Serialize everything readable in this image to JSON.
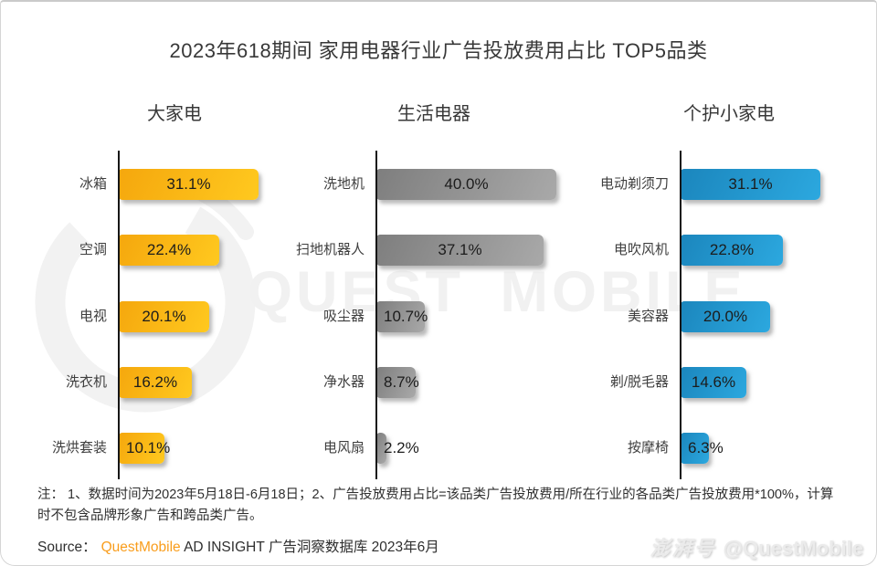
{
  "card": {
    "title": "2023年618期间 家用电器行业广告投放费用占比 TOP5品类",
    "note": "注： 1、数据时间为2023年5月18日-6月18日；2、广告投放费用占比=该品类广告投放费用/所在行业的各品类广告投放费用*100%，计算时不包含品牌形象广告和跨品类广告。",
    "source_prefix": "Source：",
    "source_brand": "QuestMobile",
    "source_rest": " AD INSIGHT 广告洞察数据库 2023年6月",
    "watermark_text": "QUEST MOBILE",
    "watermark_badge_cn": "澎湃号",
    "watermark_badge_handle": "@QuestMobile"
  },
  "colors": {
    "axis": "#161616",
    "title_text": "#383838",
    "value_text": "#1c1c1c",
    "brand_orange": "#F99D1C",
    "watermark_gray": "#f1f1f1"
  },
  "chart_data": [
    {
      "type": "bar",
      "orientation": "horizontal",
      "title": "大家电",
      "unit": "%",
      "xlim": [
        0,
        45
      ],
      "bar_color_from": "#F5A70D",
      "bar_color_to": "#FFC91F",
      "categories": [
        "冰箱",
        "空调",
        "电视",
        "洗衣机",
        "洗烘套装"
      ],
      "values": [
        31.1,
        22.4,
        20.1,
        16.2,
        10.1
      ],
      "labels": [
        "31.1%",
        "22.4%",
        "20.1%",
        "16.2%",
        "10.1%"
      ]
    },
    {
      "type": "bar",
      "orientation": "horizontal",
      "title": "生活电器",
      "unit": "%",
      "xlim": [
        0,
        45
      ],
      "bar_color_from": "#7E7E7E",
      "bar_color_to": "#A9A9A9",
      "categories": [
        "洗地机",
        "扫地机器人",
        "吸尘器",
        "净水器",
        "电风扇"
      ],
      "values": [
        40.0,
        37.1,
        10.7,
        8.7,
        2.2
      ],
      "labels": [
        "40.0%",
        "37.1%",
        "10.7%",
        "8.7%",
        "2.2%"
      ]
    },
    {
      "type": "bar",
      "orientation": "horizontal",
      "title": "个护小家电",
      "unit": "%",
      "xlim": [
        0,
        45
      ],
      "bar_color_from": "#1B86BD",
      "bar_color_to": "#2CA8DF",
      "categories": [
        "电动剃须刀",
        "电吹风机",
        "美容器",
        "剃/脱毛器",
        "按摩椅"
      ],
      "values": [
        31.1,
        22.8,
        20.0,
        14.6,
        6.3
      ],
      "labels": [
        "31.1%",
        "22.8%",
        "20.0%",
        "14.6%",
        "6.3%"
      ]
    }
  ]
}
